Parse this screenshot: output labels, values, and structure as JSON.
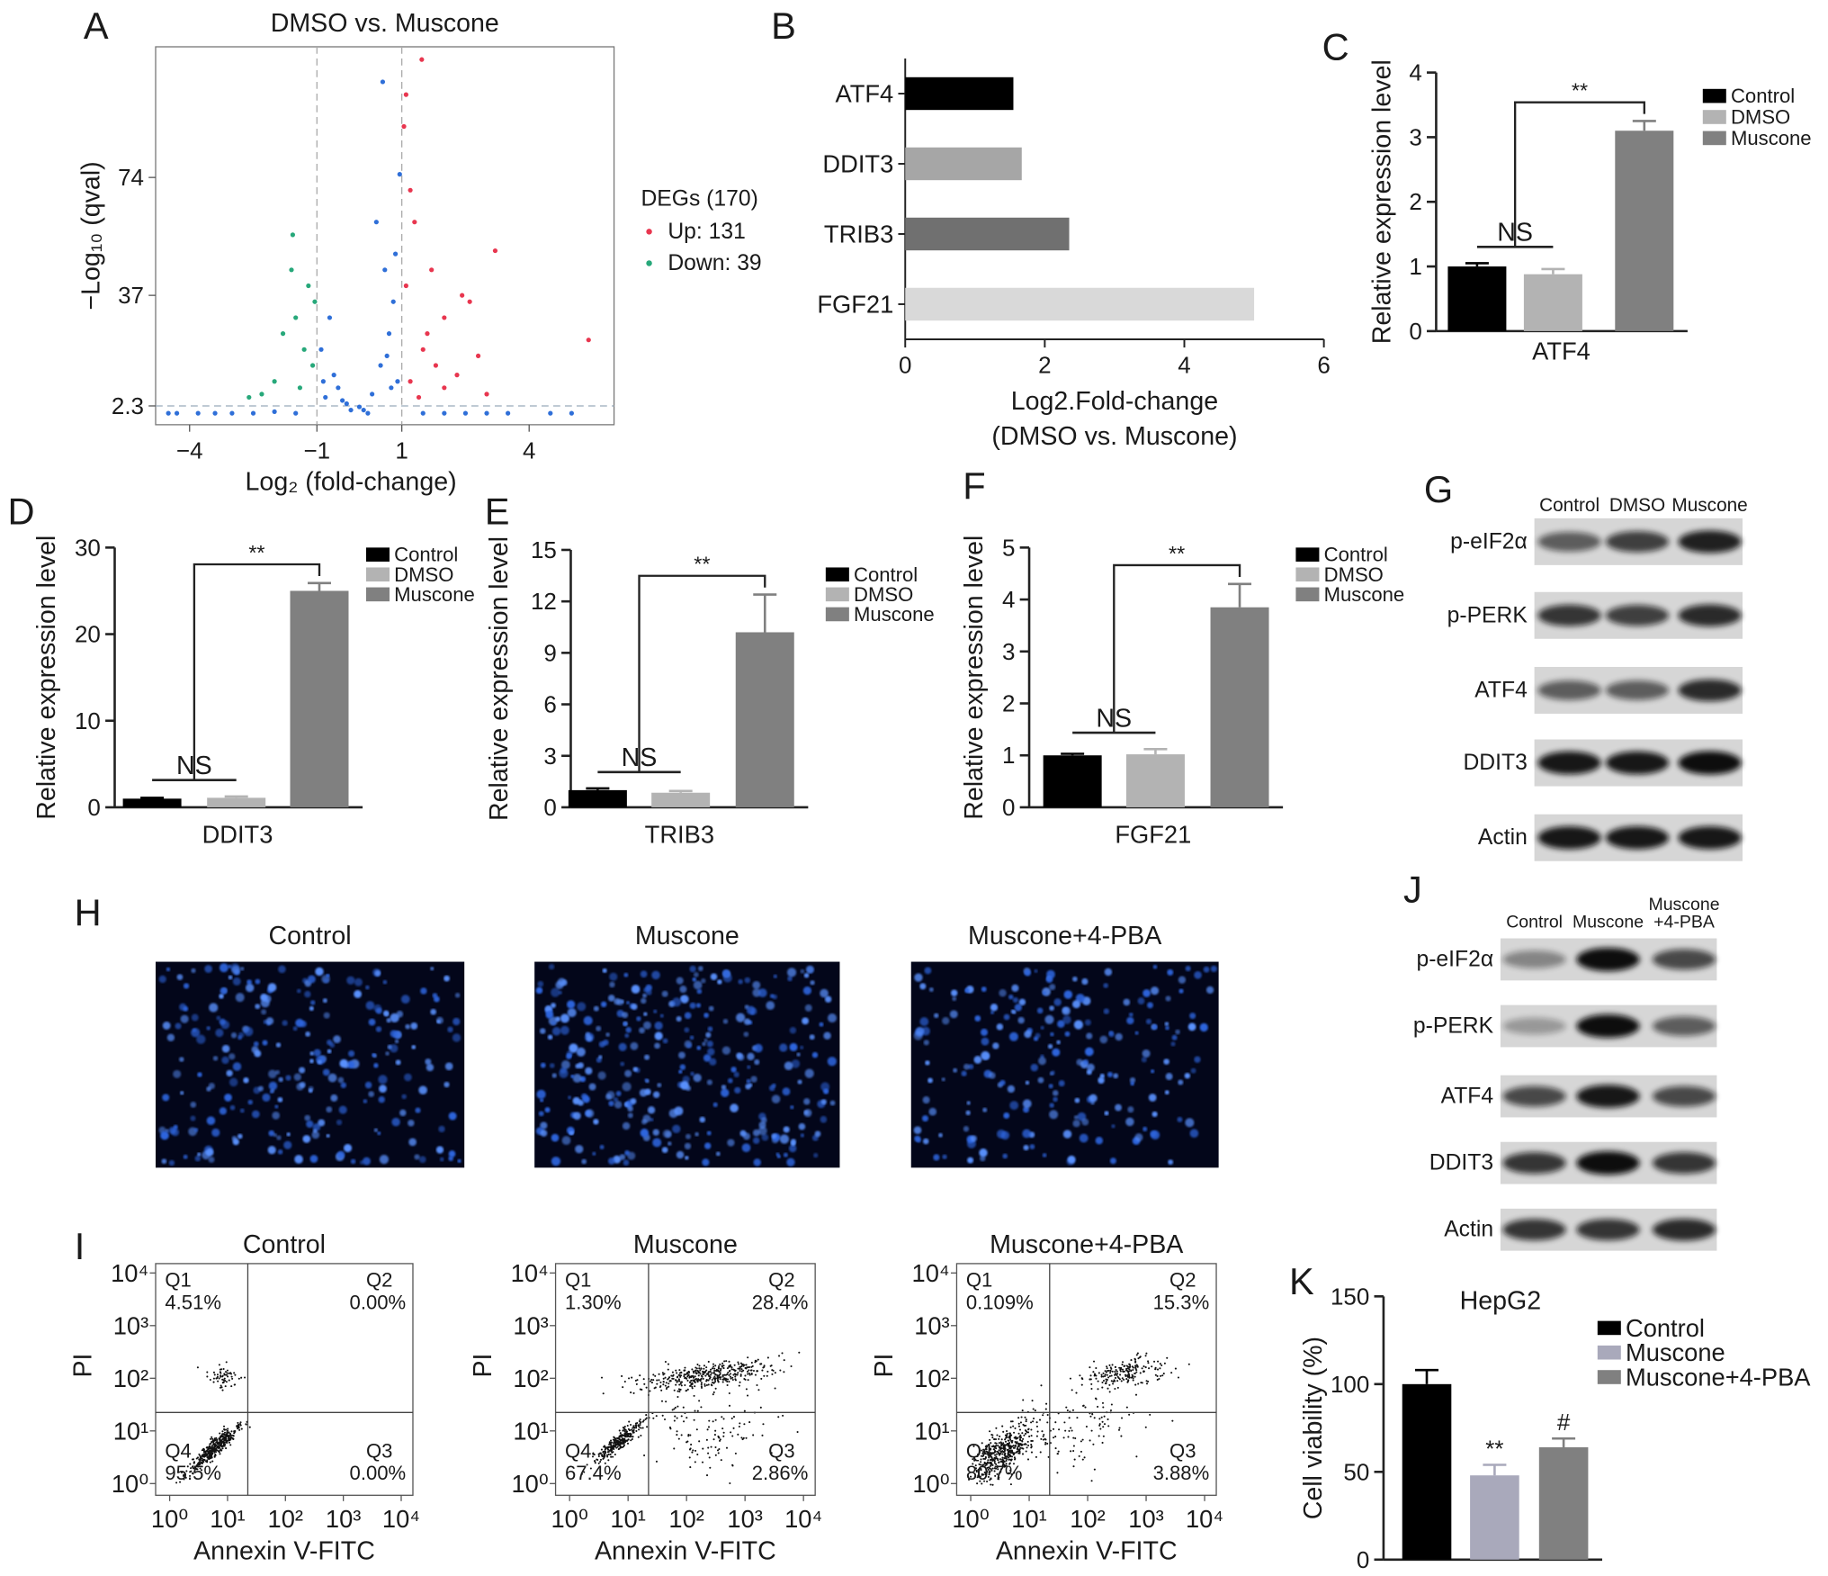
{
  "chart_data": [
    {
      "panel": "A",
      "type": "scatter",
      "title": "DMSO vs. Muscone",
      "xlabel": "Log₂ (fold-change)",
      "ylabel": "−Log₁₀ (qval)",
      "xlim": [
        -4.8,
        6
      ],
      "ylim": [
        -3.6,
        115
      ],
      "xticks": [
        {
          "value": -4,
          "label": "−4"
        },
        {
          "value": -1,
          "label": "−1"
        },
        1,
        4
      ],
      "yticks": [
        2.3,
        37,
        74
      ],
      "vlines": [
        -1,
        1
      ],
      "hlines": [
        2.3
      ],
      "legend_title": "DEGs (170)",
      "series": [
        {
          "color": "#2f6fd8",
          "x": [
            -4.5,
            -4.3,
            -3.8,
            -3.4,
            -3,
            -2.5,
            -2,
            -1.5,
            -0.8,
            -0.6,
            -0.9,
            -0.5,
            -0.3,
            0,
            0.3,
            0.5,
            0.7,
            0.8,
            0.9,
            0.6,
            0.4,
            0.55,
            0.2,
            -0.2,
            1.5,
            2.5,
            3.5,
            4.5,
            -0.7,
            0.85,
            0.95,
            -0.4,
            0.1,
            0.65,
            0.75,
            -0.85,
            2,
            3,
            5
          ],
          "y": [
            0,
            0,
            0,
            0,
            0,
            0,
            0.5,
            0,
            5,
            12,
            20,
            8,
            3,
            2,
            6,
            15,
            25,
            35,
            10,
            45,
            60,
            104,
            0,
            1,
            0,
            0,
            0,
            0,
            30,
            50,
            75,
            4,
            1,
            18,
            8,
            10,
            0,
            0,
            0
          ]
        },
        {
          "name": "Up: 131",
          "color": "#e8364f",
          "x": [
            1.2,
            1.5,
            1.8,
            2,
            2.3,
            1.1,
            1.3,
            1.6,
            2.6,
            3.2,
            1.05,
            1.1,
            5.4,
            1.4,
            2,
            3,
            1.2,
            1.7,
            2.8,
            1.47,
            2.42
          ],
          "y": [
            10,
            20,
            15,
            30,
            12,
            40,
            60,
            25,
            35,
            51,
            90,
            100,
            23,
            5,
            8,
            6,
            70,
            45,
            18,
            111,
            37
          ]
        },
        {
          "name": "Down: 39",
          "color": "#27a87a",
          "x": [
            -1.6,
            -1.2,
            -1.5,
            -2,
            -1.3,
            -1.1,
            -2.3,
            -1.8,
            -1.4,
            -1.05,
            -2.6,
            -1.57
          ],
          "y": [
            45,
            40,
            30,
            10,
            20,
            15,
            6,
            25,
            8,
            35,
            5,
            56
          ]
        }
      ]
    },
    {
      "panel": "B",
      "type": "hbar",
      "categories": [
        "ATF4",
        "DDIT3",
        "TRIB3",
        "FGF21"
      ],
      "values": [
        1.55,
        1.67,
        2.35,
        5.0
      ],
      "colors": [
        "#000000",
        "#a6a6a6",
        "#707070",
        "#d9d9d9"
      ],
      "xlim": [
        0,
        6
      ],
      "xticks": [
        0,
        2,
        4,
        6
      ],
      "xlabel": [
        "Log2.Fold-change",
        "(DMSO vs. Muscone)"
      ]
    },
    {
      "panel": "C",
      "type": "bar",
      "categories": [
        "ATF4"
      ],
      "ylabel": "Relative expression level",
      "ylim": [
        0,
        4
      ],
      "yticks": [
        0,
        1,
        2,
        3,
        4
      ],
      "brackets": [
        "NS",
        "**"
      ],
      "series": [
        {
          "name": "Control",
          "color": "#000000",
          "values": [
            1.0
          ],
          "errors": [
            0.05
          ]
        },
        {
          "name": "DMSO",
          "color": "#b3b3b3",
          "values": [
            0.88
          ],
          "errors": [
            0.08
          ]
        },
        {
          "name": "Muscone",
          "color": "#808080",
          "values": [
            3.1
          ],
          "errors": [
            0.15
          ]
        }
      ]
    },
    {
      "panel": "D",
      "type": "bar",
      "categories": [
        "DDIT3"
      ],
      "ylabel": "Relative expression level",
      "ylim": [
        0,
        30
      ],
      "yticks": [
        0,
        10,
        20,
        30
      ],
      "brackets": [
        "NS",
        "**"
      ],
      "series": [
        {
          "name": "Control",
          "color": "#000000",
          "values": [
            1.0
          ],
          "errors": [
            0.1
          ]
        },
        {
          "name": "DMSO",
          "color": "#b3b3b3",
          "values": [
            1.1
          ],
          "errors": [
            0.15
          ]
        },
        {
          "name": "Muscone",
          "color": "#808080",
          "values": [
            25
          ],
          "errors": [
            0.9
          ]
        }
      ]
    },
    {
      "panel": "E",
      "type": "bar",
      "categories": [
        "TRIB3"
      ],
      "ylabel": "Relative expression level",
      "ylim": [
        0,
        15
      ],
      "yticks": [
        0,
        3,
        6,
        9,
        12,
        15
      ],
      "brackets": [
        "NS",
        "**"
      ],
      "series": [
        {
          "name": "Control",
          "color": "#000000",
          "values": [
            1.0
          ],
          "errors": [
            0.1
          ]
        },
        {
          "name": "DMSO",
          "color": "#b3b3b3",
          "values": [
            0.85
          ],
          "errors": [
            0.1
          ]
        },
        {
          "name": "Muscone",
          "color": "#808080",
          "values": [
            10.2
          ],
          "errors": [
            2.2
          ]
        }
      ]
    },
    {
      "panel": "F",
      "type": "bar",
      "categories": [
        "FGF21"
      ],
      "ylabel": "Relative expression level",
      "ylim": [
        0,
        5
      ],
      "yticks": [
        0,
        1,
        2,
        3,
        4,
        5
      ],
      "brackets": [
        "NS",
        "**"
      ],
      "series": [
        {
          "name": "Control",
          "color": "#000000",
          "values": [
            1.0
          ],
          "errors": [
            0.03
          ]
        },
        {
          "name": "DMSO",
          "color": "#b3b3b3",
          "values": [
            1.02
          ],
          "errors": [
            0.1
          ]
        },
        {
          "name": "Muscone",
          "color": "#808080",
          "values": [
            3.85
          ],
          "errors": [
            0.45
          ]
        }
      ]
    },
    {
      "panel": "I",
      "type": "flow",
      "title": "Control",
      "xlabel": "Annexin V-FITC",
      "ylabel": "PI",
      "log": true,
      "xlim": [
        1,
        10000
      ],
      "ylim": [
        1,
        10000
      ],
      "xticks": [
        {
          "value": 1,
          "label": "10⁰"
        },
        {
          "value": 10,
          "label": "10¹"
        },
        {
          "value": 100,
          "label": "10²"
        },
        {
          "value": 1000,
          "label": "10³"
        },
        {
          "value": 10000,
          "label": "10⁴"
        }
      ],
      "yticks": [
        {
          "value": 1,
          "label": "10⁰"
        },
        {
          "value": 10,
          "label": "10¹"
        },
        {
          "value": 100,
          "label": "10²"
        },
        {
          "value": 1000,
          "label": "10³"
        },
        {
          "value": 10000,
          "label": "10⁴"
        }
      ],
      "quadrants": [
        "Q1",
        "Q2",
        "Q3",
        "Q4"
      ],
      "values": [
        4.51,
        0,
        0,
        95.5
      ],
      "value_labels": [
        "4.51%",
        "0.00%",
        "0.00%",
        "95.5%"
      ]
    },
    {
      "type": "flow",
      "title": "Muscone",
      "xlabel": "Annexin V-FITC",
      "ylabel": "PI",
      "log": true,
      "xlim": [
        1,
        10000
      ],
      "ylim": [
        1,
        10000
      ],
      "xticks": [
        {
          "value": 1,
          "label": "10⁰"
        },
        {
          "value": 10,
          "label": "10¹"
        },
        {
          "value": 100,
          "label": "10²"
        },
        {
          "value": 1000,
          "label": "10³"
        },
        {
          "value": 10000,
          "label": "10⁴"
        }
      ],
      "yticks": [
        {
          "value": 1,
          "label": "10⁰"
        },
        {
          "value": 10,
          "label": "10¹"
        },
        {
          "value": 100,
          "label": "10²"
        },
        {
          "value": 1000,
          "label": "10³"
        },
        {
          "value": 10000,
          "label": "10⁴"
        }
      ],
      "quadrants": [
        "Q1",
        "Q2",
        "Q3",
        "Q4"
      ],
      "values": [
        1.3,
        28.4,
        2.86,
        67.4
      ],
      "value_labels": [
        "1.30%",
        "28.4%",
        "2.86%",
        "67.4%"
      ]
    },
    {
      "type": "flow",
      "title": "Muscone+4-PBA",
      "xlabel": "Annexin V-FITC",
      "ylabel": "PI",
      "log": true,
      "xlim": [
        1,
        10000
      ],
      "ylim": [
        1,
        10000
      ],
      "xticks": [
        {
          "value": 1,
          "label": "10⁰"
        },
        {
          "value": 10,
          "label": "10¹"
        },
        {
          "value": 100,
          "label": "10²"
        },
        {
          "value": 1000,
          "label": "10³"
        },
        {
          "value": 10000,
          "label": "10⁴"
        }
      ],
      "yticks": [
        {
          "value": 1,
          "label": "10⁰"
        },
        {
          "value": 10,
          "label": "10¹"
        },
        {
          "value": 100,
          "label": "10²"
        },
        {
          "value": 1000,
          "label": "10³"
        },
        {
          "value": 10000,
          "label": "10⁴"
        }
      ],
      "quadrants": [
        "Q1",
        "Q2",
        "Q3",
        "Q4"
      ],
      "values": [
        0.109,
        15.3,
        3.88,
        80.7
      ],
      "value_labels": [
        "0.109%",
        "15.3%",
        "3.88%",
        "80.7%"
      ]
    },
    {
      "panel": "K",
      "type": "bar",
      "title": "HepG2",
      "ylabel": "Cell viability (%)",
      "ylim": [
        0,
        150
      ],
      "yticks": [
        0,
        50,
        100,
        150
      ],
      "series": [
        {
          "name": "Control",
          "color": "#000000",
          "values": [
            100
          ],
          "errors": [
            8
          ]
        },
        {
          "name": "Muscone",
          "color": "#a9a9bb",
          "values": [
            48
          ],
          "errors": [
            6
          ],
          "annotation": "**"
        },
        {
          "name": "Muscone+4-PBA",
          "color": "#808080",
          "values": [
            64
          ],
          "errors": [
            5
          ],
          "annotation": "#"
        }
      ]
    }
  ],
  "blots": [
    {
      "panel": "G",
      "lanes": [
        "Control",
        "DMSO",
        "Muscone"
      ],
      "rows": [
        "p-eIF2α",
        "p-PERK",
        "ATF4",
        "DDIT3",
        "Actin"
      ]
    },
    {
      "panel": "J",
      "lanes": [
        "Control",
        "Muscone",
        [
          "Muscone",
          "+4-PBA"
        ]
      ],
      "rows": [
        "p-eIF2α",
        "p-PERK",
        "ATF4",
        "DDIT3",
        "Actin"
      ]
    }
  ],
  "microscopy": {
    "panel": "H",
    "titles": [
      "Control",
      "Muscone",
      "Muscone+4-PBA"
    ]
  }
}
